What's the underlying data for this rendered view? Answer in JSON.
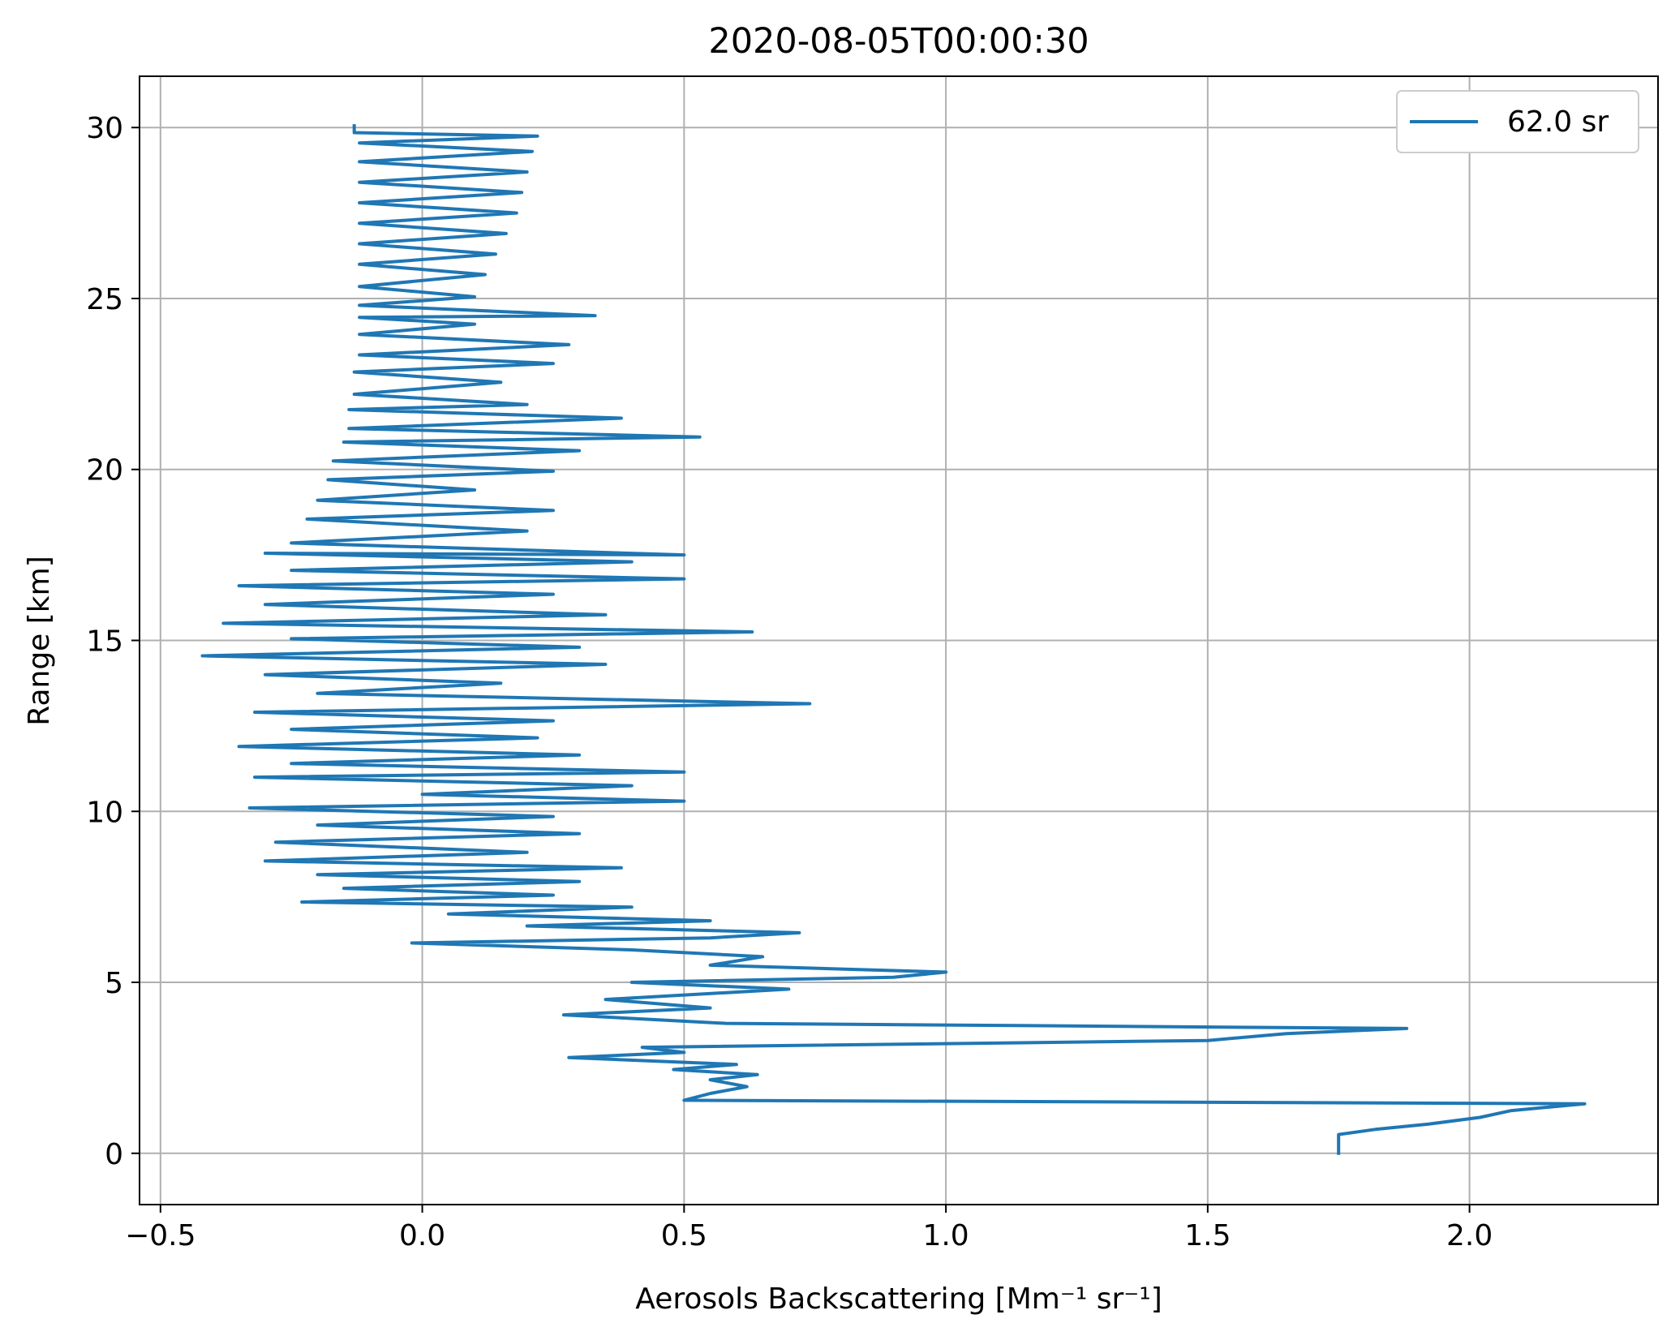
{
  "chart_data": {
    "type": "line",
    "title": "2020-08-05T00:00:30",
    "xlabel": "Aerosols Backscattering [Mm⁻¹ sr⁻¹]",
    "ylabel": "Range [km]",
    "xlim": [
      -0.54,
      2.36
    ],
    "ylim": [
      -1.5,
      31.5
    ],
    "xticks": [
      -0.5,
      0.0,
      0.5,
      1.0,
      1.5,
      2.0
    ],
    "xtick_labels": [
      "−0.5",
      "0.0",
      "0.5",
      "1.0",
      "1.5",
      "2.0"
    ],
    "yticks": [
      0,
      5,
      10,
      15,
      20,
      25,
      30
    ],
    "ytick_labels": [
      "0",
      "5",
      "10",
      "15",
      "20",
      "25",
      "30"
    ],
    "grid": true,
    "legend_position": "top-right",
    "series": [
      {
        "name": "62.0 sr",
        "color": "#1f77b4",
        "points": [
          {
            "x": 1.75,
            "y": 0.0
          },
          {
            "x": 1.75,
            "y": 0.55
          },
          {
            "x": 1.82,
            "y": 0.7
          },
          {
            "x": 1.92,
            "y": 0.85
          },
          {
            "x": 2.02,
            "y": 1.05
          },
          {
            "x": 2.08,
            "y": 1.25
          },
          {
            "x": 2.22,
            "y": 1.45
          },
          {
            "x": 0.5,
            "y": 1.55
          },
          {
            "x": 0.55,
            "y": 1.75
          },
          {
            "x": 0.62,
            "y": 1.95
          },
          {
            "x": 0.55,
            "y": 2.15
          },
          {
            "x": 0.64,
            "y": 2.3
          },
          {
            "x": 0.48,
            "y": 2.45
          },
          {
            "x": 0.6,
            "y": 2.6
          },
          {
            "x": 0.28,
            "y": 2.8
          },
          {
            "x": 0.5,
            "y": 2.95
          },
          {
            "x": 0.42,
            "y": 3.1
          },
          {
            "x": 1.5,
            "y": 3.3
          },
          {
            "x": 1.65,
            "y": 3.5
          },
          {
            "x": 1.88,
            "y": 3.65
          },
          {
            "x": 0.58,
            "y": 3.8
          },
          {
            "x": 0.27,
            "y": 4.05
          },
          {
            "x": 0.55,
            "y": 4.25
          },
          {
            "x": 0.35,
            "y": 4.5
          },
          {
            "x": 0.7,
            "y": 4.8
          },
          {
            "x": 0.4,
            "y": 5.0
          },
          {
            "x": 0.9,
            "y": 5.15
          },
          {
            "x": 1.0,
            "y": 5.3
          },
          {
            "x": 0.55,
            "y": 5.5
          },
          {
            "x": 0.65,
            "y": 5.75
          },
          {
            "x": 0.4,
            "y": 5.95
          },
          {
            "x": -0.02,
            "y": 6.15
          },
          {
            "x": 0.55,
            "y": 6.3
          },
          {
            "x": 0.72,
            "y": 6.45
          },
          {
            "x": 0.2,
            "y": 6.65
          },
          {
            "x": 0.55,
            "y": 6.8
          },
          {
            "x": 0.05,
            "y": 7.0
          },
          {
            "x": 0.4,
            "y": 7.2
          },
          {
            "x": -0.23,
            "y": 7.35
          },
          {
            "x": 0.25,
            "y": 7.55
          },
          {
            "x": -0.15,
            "y": 7.75
          },
          {
            "x": 0.3,
            "y": 7.95
          },
          {
            "x": -0.2,
            "y": 8.15
          },
          {
            "x": 0.38,
            "y": 8.35
          },
          {
            "x": -0.3,
            "y": 8.55
          },
          {
            "x": 0.2,
            "y": 8.8
          },
          {
            "x": -0.28,
            "y": 9.1
          },
          {
            "x": 0.3,
            "y": 9.35
          },
          {
            "x": -0.2,
            "y": 9.6
          },
          {
            "x": 0.25,
            "y": 9.85
          },
          {
            "x": -0.33,
            "y": 10.1
          },
          {
            "x": 0.5,
            "y": 10.3
          },
          {
            "x": 0.0,
            "y": 10.5
          },
          {
            "x": 0.4,
            "y": 10.75
          },
          {
            "x": -0.32,
            "y": 11.0
          },
          {
            "x": 0.5,
            "y": 11.15
          },
          {
            "x": -0.25,
            "y": 11.4
          },
          {
            "x": 0.3,
            "y": 11.65
          },
          {
            "x": -0.35,
            "y": 11.9
          },
          {
            "x": 0.22,
            "y": 12.15
          },
          {
            "x": -0.25,
            "y": 12.4
          },
          {
            "x": 0.25,
            "y": 12.65
          },
          {
            "x": -0.32,
            "y": 12.9
          },
          {
            "x": 0.74,
            "y": 13.15
          },
          {
            "x": -0.2,
            "y": 13.45
          },
          {
            "x": 0.15,
            "y": 13.75
          },
          {
            "x": -0.3,
            "y": 14.0
          },
          {
            "x": 0.35,
            "y": 14.3
          },
          {
            "x": -0.42,
            "y": 14.55
          },
          {
            "x": 0.3,
            "y": 14.8
          },
          {
            "x": -0.25,
            "y": 15.05
          },
          {
            "x": 0.63,
            "y": 15.25
          },
          {
            "x": -0.38,
            "y": 15.5
          },
          {
            "x": 0.35,
            "y": 15.75
          },
          {
            "x": -0.3,
            "y": 16.05
          },
          {
            "x": 0.25,
            "y": 16.35
          },
          {
            "x": -0.35,
            "y": 16.6
          },
          {
            "x": 0.5,
            "y": 16.8
          },
          {
            "x": -0.25,
            "y": 17.05
          },
          {
            "x": 0.4,
            "y": 17.3
          },
          {
            "x": -0.3,
            "y": 17.55
          },
          {
            "x": 0.5,
            "y": 17.5
          },
          {
            "x": -0.25,
            "y": 17.85
          },
          {
            "x": 0.2,
            "y": 18.2
          },
          {
            "x": -0.22,
            "y": 18.55
          },
          {
            "x": 0.25,
            "y": 18.8
          },
          {
            "x": -0.2,
            "y": 19.1
          },
          {
            "x": 0.1,
            "y": 19.4
          },
          {
            "x": -0.18,
            "y": 19.7
          },
          {
            "x": 0.25,
            "y": 19.95
          },
          {
            "x": -0.17,
            "y": 20.25
          },
          {
            "x": 0.3,
            "y": 20.55
          },
          {
            "x": -0.15,
            "y": 20.8
          },
          {
            "x": 0.53,
            "y": 20.95
          },
          {
            "x": -0.14,
            "y": 21.2
          },
          {
            "x": 0.38,
            "y": 21.5
          },
          {
            "x": -0.14,
            "y": 21.75
          },
          {
            "x": 0.2,
            "y": 21.9
          },
          {
            "x": -0.13,
            "y": 22.2
          },
          {
            "x": 0.15,
            "y": 22.55
          },
          {
            "x": -0.13,
            "y": 22.85
          },
          {
            "x": 0.25,
            "y": 23.1
          },
          {
            "x": -0.12,
            "y": 23.35
          },
          {
            "x": 0.28,
            "y": 23.65
          },
          {
            "x": -0.12,
            "y": 23.95
          },
          {
            "x": 0.1,
            "y": 24.25
          },
          {
            "x": -0.12,
            "y": 24.45
          },
          {
            "x": 0.33,
            "y": 24.5
          },
          {
            "x": -0.12,
            "y": 24.8
          },
          {
            "x": 0.1,
            "y": 25.05
          },
          {
            "x": -0.12,
            "y": 25.35
          },
          {
            "x": 0.12,
            "y": 25.7
          },
          {
            "x": -0.12,
            "y": 26.0
          },
          {
            "x": 0.14,
            "y": 26.3
          },
          {
            "x": -0.12,
            "y": 26.6
          },
          {
            "x": 0.16,
            "y": 26.9
          },
          {
            "x": -0.12,
            "y": 27.2
          },
          {
            "x": 0.18,
            "y": 27.5
          },
          {
            "x": -0.12,
            "y": 27.8
          },
          {
            "x": 0.19,
            "y": 28.1
          },
          {
            "x": -0.12,
            "y": 28.4
          },
          {
            "x": 0.2,
            "y": 28.7
          },
          {
            "x": -0.12,
            "y": 29.0
          },
          {
            "x": 0.21,
            "y": 29.3
          },
          {
            "x": -0.12,
            "y": 29.55
          },
          {
            "x": 0.22,
            "y": 29.75
          },
          {
            "x": -0.13,
            "y": 29.85
          },
          {
            "x": -0.13,
            "y": 30.05
          }
        ]
      }
    ]
  }
}
